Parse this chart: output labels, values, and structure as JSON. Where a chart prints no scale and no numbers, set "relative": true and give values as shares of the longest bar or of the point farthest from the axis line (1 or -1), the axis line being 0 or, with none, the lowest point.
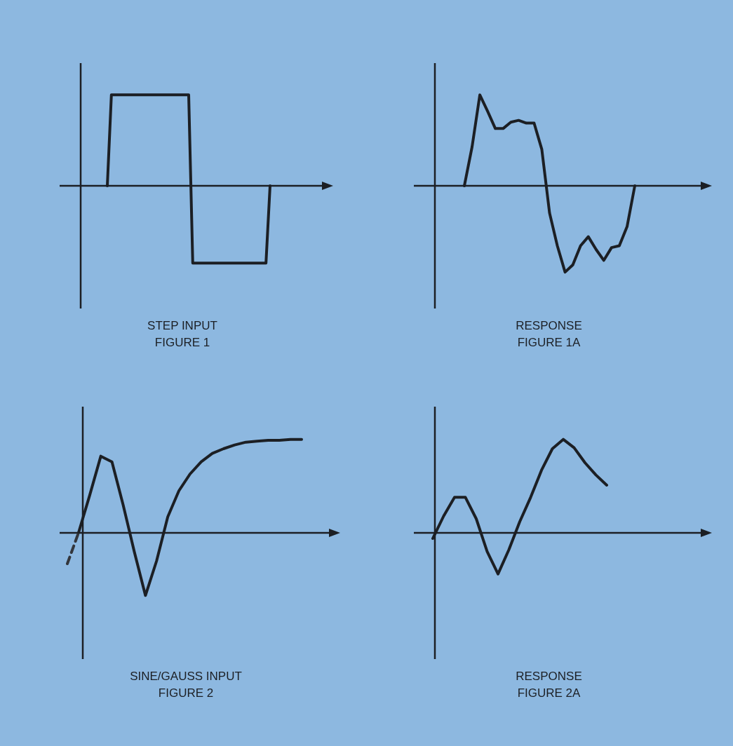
{
  "chart_data": [
    {
      "type": "line",
      "title": "STEP INPUT",
      "subtitle": "FIGURE 1",
      "relative": true,
      "categories": [
        null,
        null,
        null,
        null,
        null,
        null,
        null,
        null,
        null,
        null,
        null,
        null,
        null,
        null,
        null,
        null,
        null,
        null,
        null,
        null,
        null,
        null,
        null,
        null,
        null,
        null,
        null,
        null,
        null,
        null,
        null,
        null,
        null,
        null,
        null,
        null,
        null,
        null,
        null,
        null,
        null
      ],
      "series": [
        {
          "color": "#1c1f24",
          "values": [
            0,
            1,
            1,
            1,
            1,
            1,
            1,
            1,
            1,
            1,
            1,
            1,
            1,
            1,
            1,
            1,
            1,
            1,
            1,
            1,
            1,
            -0.85,
            -0.85,
            -0.85,
            -0.85,
            -0.85,
            -0.85,
            -0.85,
            -0.85,
            -0.85,
            -0.85,
            -0.85,
            -0.85,
            -0.85,
            -0.85,
            -0.85,
            -0.85,
            -0.85,
            -0.85,
            -0.85,
            0
          ]
        }
      ]
    },
    {
      "type": "line",
      "title": "RESPONSE",
      "subtitle": "FIGURE 1A",
      "relative": true,
      "categories": [
        null,
        null,
        null,
        null,
        null,
        null,
        null,
        null,
        null,
        null,
        null,
        null,
        null,
        null,
        null,
        null,
        null,
        null,
        null,
        null,
        null,
        null,
        null
      ],
      "series": [
        {
          "color": "#1c1f24",
          "values": [
            0,
            0.43,
            1,
            0.82,
            0.63,
            0.63,
            0.7,
            0.72,
            0.69,
            0.69,
            0.4,
            -0.3,
            -0.66,
            -0.95,
            -0.87,
            -0.66,
            -0.56,
            -0.7,
            -0.82,
            -0.68,
            -0.66,
            -0.45,
            0
          ]
        }
      ]
    },
    {
      "type": "line",
      "title": "SINE/GAUSS INPUT",
      "subtitle": "FIGURE 2",
      "relative": true,
      "categories": [
        null,
        null,
        null,
        null,
        null,
        null,
        null,
        null,
        null,
        null,
        null,
        null,
        null,
        null,
        null,
        null,
        null,
        null,
        null,
        null,
        null,
        null
      ],
      "series": [
        {
          "color": "#1c1f24",
          "line_style": "solid",
          "values": [
            null,
            0,
            0.4,
            0.82,
            0.76,
            0.3,
            -0.2,
            -0.67,
            -0.3,
            0.17,
            0.45,
            0.63,
            0.76,
            0.85,
            0.9,
            0.94,
            0.97,
            0.98,
            0.99,
            0.99,
            1,
            1
          ]
        },
        {
          "color": "#33363c",
          "line_style": "dashed",
          "values": [
            -0.33,
            0,
            null,
            null,
            null,
            null,
            null,
            null,
            null,
            null,
            null,
            null,
            null,
            null,
            null,
            null,
            null,
            null,
            null,
            null,
            null,
            null
          ]
        }
      ]
    },
    {
      "type": "line",
      "title": "RESPONSE",
      "subtitle": "FIGURE 2A",
      "relative": true,
      "categories": [
        null,
        null,
        null,
        null,
        null,
        null,
        null,
        null,
        null,
        null,
        null,
        null,
        null,
        null,
        null,
        null,
        null
      ],
      "series": [
        {
          "color": "#1c1f24",
          "values": [
            -0.06,
            0.18,
            0.38,
            0.38,
            0.15,
            -0.2,
            -0.44,
            -0.18,
            0.12,
            0.38,
            0.67,
            0.9,
            1,
            0.91,
            0.75,
            0.62,
            0.51
          ]
        }
      ]
    }
  ]
}
